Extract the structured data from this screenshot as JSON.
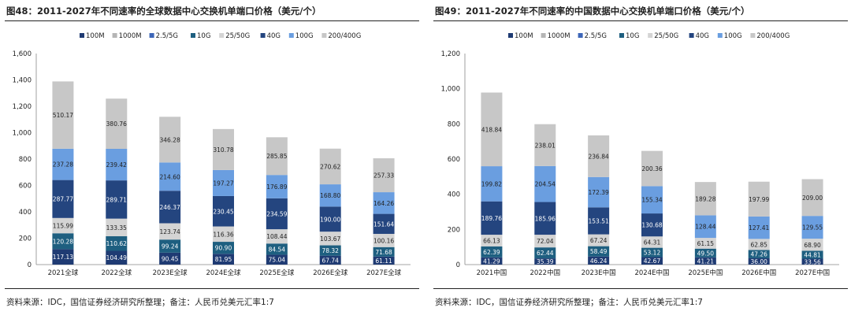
{
  "panels": [
    {
      "title": "图48：2011-2027年不同速率的全球数据中心交换机单端口价格（美元/个）",
      "source": "资料来源：IDC，国信证券经济研究所整理；备注：人民币兑美元汇率1:7"
    },
    {
      "title": "图49：2011-2027年不同速率的中国数据中心交换机单端口价格（美元/个）",
      "source": "资料来源：IDC，国信证券经济研究所整理；备注：人民币兑美元汇率1:7"
    }
  ],
  "colors": {
    "100M": "#1f3b73",
    "1000M": "#b5b5b5",
    "2.5/5G": "#3d66b8",
    "10G": "#1e5f80",
    "25/50G": "#d4d4d4",
    "40G": "#24457f",
    "100G": "#6a9ee0",
    "200/400G": "#c7c7c7"
  },
  "chart_data": [
    {
      "type": "bar",
      "stacked": true,
      "legend_position": "top",
      "ylim": [
        0,
        1600
      ],
      "yticks": [
        "0",
        "200",
        "400",
        "600",
        "800",
        "1,000",
        "1,200",
        "1,400",
        "1,600"
      ],
      "categories": [
        "2021全球",
        "2022全球",
        "2023E全球",
        "2024E全球",
        "2025E全球",
        "2026E全球",
        "2027E全球"
      ],
      "series": [
        {
          "name": "100M",
          "values": [
            117.13,
            104.49,
            90.45,
            81.95,
            75.04,
            67.74,
            61.11
          ]
        },
        {
          "name": "1000M",
          "values": [
            null,
            null,
            null,
            null,
            null,
            null,
            null
          ]
        },
        {
          "name": "2.5/5G",
          "values": [
            null,
            null,
            null,
            null,
            null,
            null,
            null
          ]
        },
        {
          "name": "10G",
          "values": [
            120.28,
            110.62,
            99.24,
            90.9,
            84.54,
            78.32,
            71.68
          ]
        },
        {
          "name": "25/50G",
          "values": [
            115.99,
            133.35,
            123.74,
            116.36,
            108.44,
            103.67,
            100.16
          ]
        },
        {
          "name": "40G",
          "values": [
            287.77,
            289.71,
            246.37,
            230.45,
            234.59,
            190.0,
            151.64
          ]
        },
        {
          "name": "100G",
          "values": [
            237.28,
            239.42,
            214.6,
            197.27,
            176.89,
            168.8,
            164.26
          ]
        },
        {
          "name": "200/400G",
          "values": [
            510.17,
            380.76,
            346.28,
            310.78,
            285.85,
            270.62,
            257.33
          ]
        }
      ]
    },
    {
      "type": "bar",
      "stacked": true,
      "legend_position": "top",
      "ylim": [
        0,
        1200
      ],
      "yticks": [
        "0",
        "200",
        "400",
        "600",
        "800",
        "1,000",
        "1,200"
      ],
      "categories": [
        "2021中国",
        "2022中国",
        "2023E中国",
        "2024E中国",
        "2025E中国",
        "2026E中国",
        "2027E中国"
      ],
      "series": [
        {
          "name": "100M",
          "values": [
            41.29,
            35.39,
            46.24,
            42.67,
            41.21,
            36.0,
            33.56
          ]
        },
        {
          "name": "1000M",
          "values": [
            null,
            null,
            null,
            null,
            null,
            null,
            null
          ]
        },
        {
          "name": "2.5/5G",
          "values": [
            null,
            null,
            null,
            null,
            null,
            null,
            null
          ]
        },
        {
          "name": "10G",
          "values": [
            62.39,
            62.44,
            58.49,
            53.12,
            49.5,
            47.26,
            44.81
          ]
        },
        {
          "name": "25/50G",
          "values": [
            66.13,
            72.04,
            67.24,
            64.31,
            61.15,
            62.85,
            68.9
          ]
        },
        {
          "name": "40G",
          "values": [
            189.76,
            185.96,
            153.51,
            130.68,
            null,
            null,
            null
          ]
        },
        {
          "name": "100G",
          "values": [
            199.82,
            204.54,
            172.39,
            155.34,
            128.44,
            127.41,
            129.55
          ]
        },
        {
          "name": "200/400G",
          "values": [
            418.84,
            238.01,
            236.84,
            200.36,
            189.28,
            197.99,
            209.0
          ]
        }
      ]
    }
  ]
}
